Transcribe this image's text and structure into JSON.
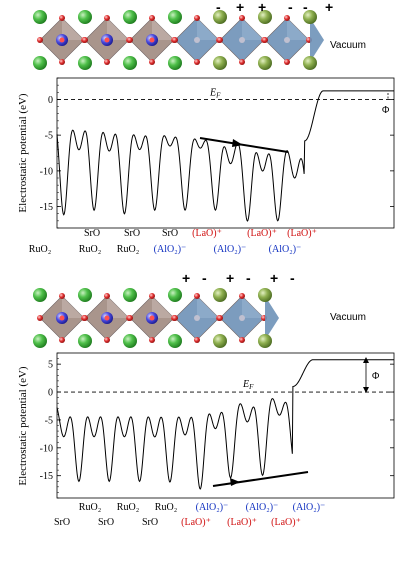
{
  "panels": [
    {
      "structure": {
        "vacuum_label": "Vacuum",
        "signs": [
          "-",
          "+",
          "-",
          "+",
          "-",
          "+"
        ]
      },
      "chart_data": {
        "type": "line",
        "ylabel": "Electrostatic potential (eV)",
        "ylim": [
          -18,
          3
        ],
        "yticks": [
          "0",
          "-5",
          "-10",
          "-15"
        ],
        "ef_label": "E",
        "ef_sub": "F",
        "phi_label": "Φ",
        "vacuum_level": 1.2,
        "upper_layer_labels": [
          {
            "text": "SrO",
            "color": "black"
          },
          {
            "text": "SrO",
            "color": "black"
          },
          {
            "text": "SrO",
            "color": "black"
          },
          {
            "text": "(LaO)⁺",
            "color": "red"
          },
          {
            "text": "(LaO)⁺",
            "color": "red"
          },
          {
            "text": "(LaO)⁺",
            "color": "red"
          }
        ],
        "lower_layer_labels": [
          {
            "text": "RuO₂",
            "color": "black"
          },
          {
            "text": "RuO₂",
            "color": "black"
          },
          {
            "text": "RuO₂",
            "color": "black"
          },
          {
            "text": "(AlO₂)⁻",
            "color": "blue"
          },
          {
            "text": "(AlO₂)⁻",
            "color": "blue"
          },
          {
            "text": "(AlO₂)⁻",
            "color": "blue"
          }
        ]
      }
    },
    {
      "structure": {
        "vacuum_label": "Vacuum",
        "signs": [
          "+",
          "-",
          "+",
          "-",
          "+",
          "-"
        ]
      },
      "chart_data": {
        "type": "line",
        "ylabel": "Electrostatic potential (eV)",
        "ylim": [
          -19,
          7
        ],
        "yticks": [
          "5",
          "0",
          "-5",
          "-10",
          "-15"
        ],
        "ef_label": "E",
        "ef_sub": "F",
        "phi_label": "Φ",
        "vacuum_level": 5.8,
        "upper_layer_labels": [
          {
            "text": "RuO₂",
            "color": "black"
          },
          {
            "text": "RuO₂",
            "color": "black"
          },
          {
            "text": "RuO₂",
            "color": "black"
          },
          {
            "text": "(AlO₂)⁻",
            "color": "blue"
          },
          {
            "text": "(AlO₂)⁻",
            "color": "blue"
          },
          {
            "text": "(AlO₂)⁻",
            "color": "blue"
          }
        ],
        "lower_layer_labels": [
          {
            "text": "SrO",
            "color": "black"
          },
          {
            "text": "SrO",
            "color": "black"
          },
          {
            "text": "SrO",
            "color": "black"
          },
          {
            "text": "(LaO)⁺",
            "color": "red"
          },
          {
            "text": "(LaO)⁺",
            "color": "red"
          },
          {
            "text": "(LaO)⁺",
            "color": "red"
          }
        ]
      }
    }
  ]
}
